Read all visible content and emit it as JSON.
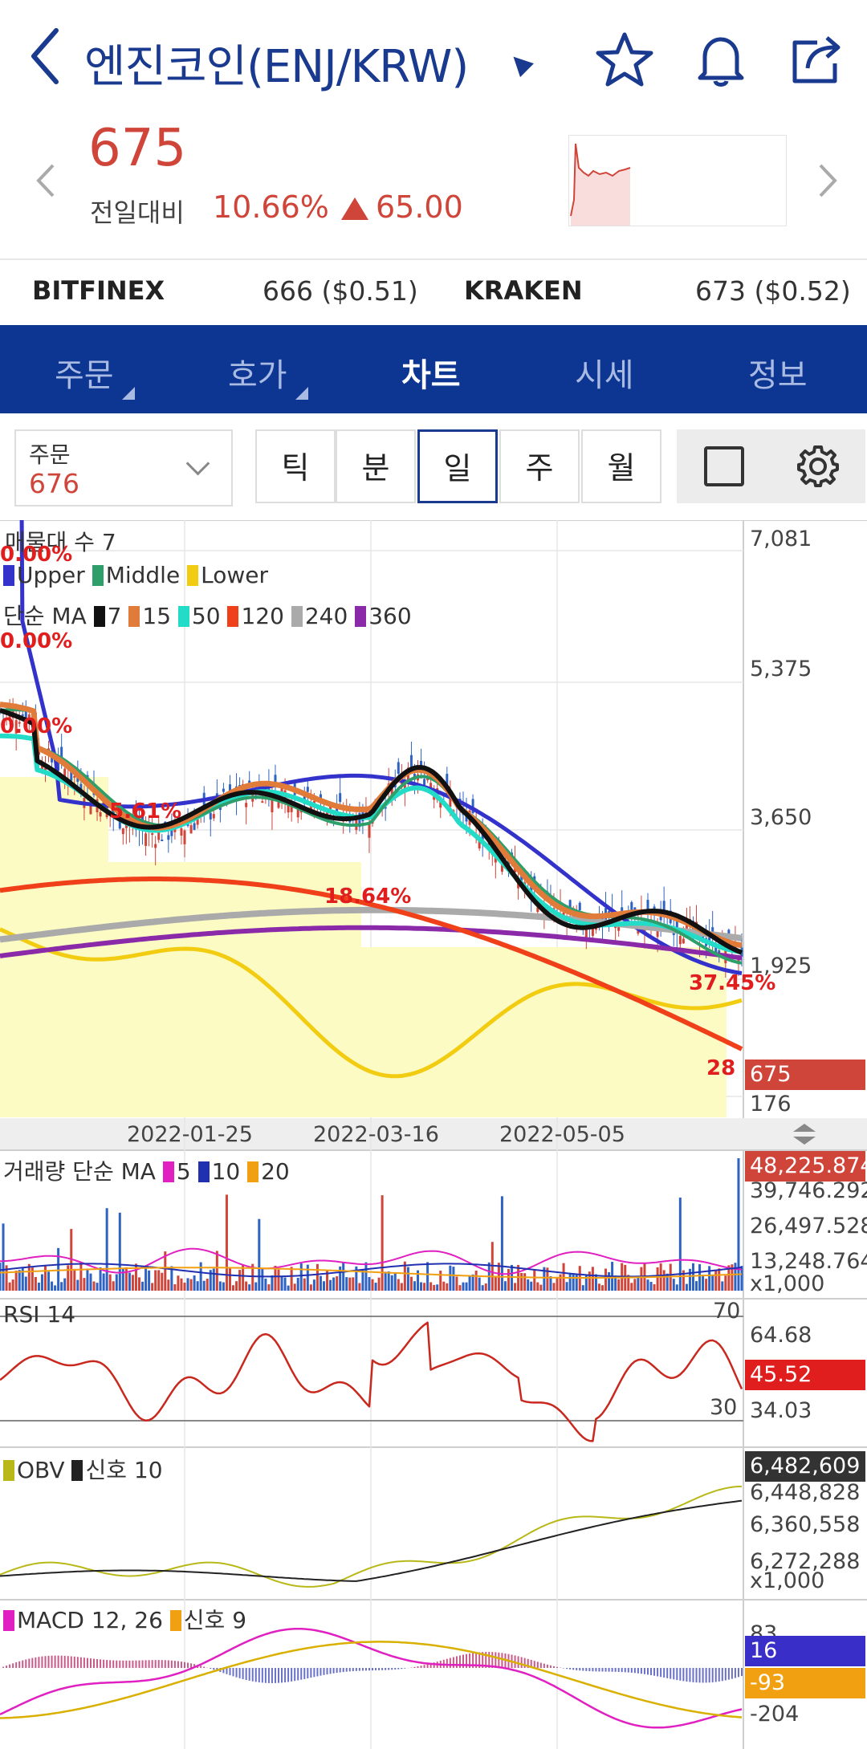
{
  "header": {
    "title": "엔진코인(ENJ/KRW)",
    "icons": [
      "back-icon",
      "star-icon",
      "bell-icon",
      "share-icon"
    ]
  },
  "price": {
    "current": "675",
    "prev_label": "전일대비",
    "change_pct": "10.66%",
    "change_abs": "65.00"
  },
  "exchanges": [
    {
      "name": "BITFINEX",
      "value": "666 ($0.51)"
    },
    {
      "name": "KRAKEN",
      "value": "673 ($0.52)"
    }
  ],
  "tabs": [
    "주문",
    "호가",
    "차트",
    "시세",
    "정보"
  ],
  "active_tab": "차트",
  "toolbar": {
    "order_label": "주문",
    "order_value": "676",
    "periods": [
      "틱",
      "분",
      "일",
      "주",
      "월"
    ],
    "selected_period": "일"
  },
  "main_chart": {
    "legend_bollinger": "매물대 수 7",
    "bollinger_items": [
      "Upper",
      "Middle",
      "Lower"
    ],
    "ma_title": "단순 MA",
    "ma_items": [
      "7",
      "15",
      "50",
      "120",
      "240",
      "360"
    ],
    "y_ticks": [
      "7,081",
      "5,375",
      "3,650",
      "1,925",
      "176"
    ],
    "current_badge": "675",
    "x_ticks": [
      "2022-01-25",
      "2022-03-16",
      "2022-05-05"
    ],
    "volume_profile_pct": [
      "0.00%",
      "0.00%",
      "0.00%",
      "5.61%",
      "18.64%",
      "37.45%",
      "28"
    ]
  },
  "volume_panel": {
    "title": "거래량 단순 MA",
    "items": [
      "5",
      "10",
      "20"
    ],
    "y_ticks": [
      "39,746.292",
      "26,497.528",
      "13,248.764"
    ],
    "unit": "x1,000",
    "current_badge": "48,225.874"
  },
  "rsi_panel": {
    "title": "RSI 14",
    "levels": [
      "70",
      "30"
    ],
    "y_ticks": [
      "64.68",
      "34.03"
    ],
    "current_badge": "45.52"
  },
  "obv_panel": {
    "title": "OBV",
    "signal": "신호 10",
    "y_ticks": [
      "6,448,828",
      "6,360,558",
      "6,272,288"
    ],
    "unit": "x1,000",
    "current_badge": "6,482,609"
  },
  "macd_panel": {
    "title": "MACD 12, 26",
    "signal": "신호 9",
    "y_ticks": [
      "83",
      "-204"
    ],
    "badge_macd": "16",
    "badge_signal": "-93"
  },
  "colors": {
    "brand": "#0d3592",
    "up": "#d0453a",
    "upper": "#3333cc",
    "middle": "#2e9e6a",
    "lower": "#f2cc10",
    "ma7": "#111111",
    "ma15": "#e07b3a",
    "ma50": "#22dcc8",
    "ma120": "#f0401a",
    "ma240": "#aaaaaa",
    "ma360": "#8a2aa8"
  }
}
